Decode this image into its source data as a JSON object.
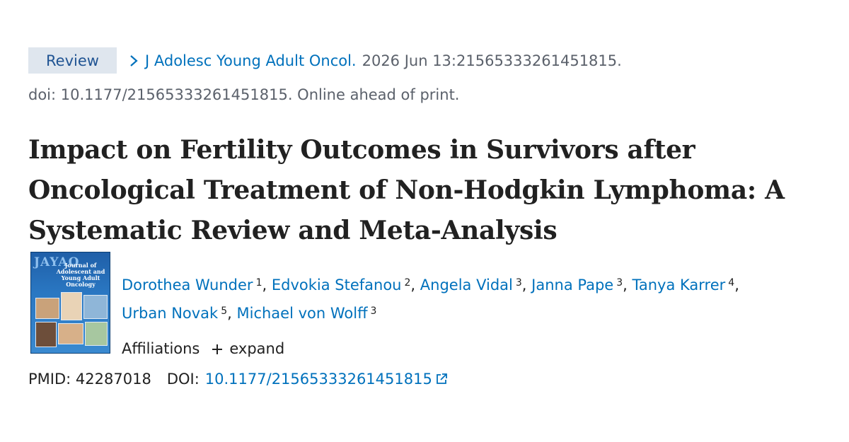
{
  "citation": {
    "badge": "Review",
    "journal": "J Adolesc Young Adult Oncol.",
    "date_pages": "2026 Jun 13:21565333261451815.",
    "doi_line": "doi: 10.1177/21565333261451815. Online ahead of print."
  },
  "article": {
    "title": "Impact on Fertility Outcomes in Survivors after Oncological Treatment of Non-Hodgkin Lymphoma: A Systematic Review and Meta-Analysis"
  },
  "cover": {
    "logo_text": "JAYAO",
    "journal_name": "Journal of Adolescent and Young Adult Oncology"
  },
  "authors": [
    {
      "name": "Dorothea Wunder",
      "aff": "1"
    },
    {
      "name": "Edvokia Stefanou",
      "aff": "2"
    },
    {
      "name": "Angela Vidal",
      "aff": "3"
    },
    {
      "name": "Janna Pape",
      "aff": "3"
    },
    {
      "name": "Tanya Karrer",
      "aff": "4"
    },
    {
      "name": "Urban Novak",
      "aff": "5"
    },
    {
      "name": "Michael von Wolff",
      "aff": "3"
    }
  ],
  "affiliations": {
    "label": "Affiliations",
    "expand_label": "expand"
  },
  "identifiers": {
    "pmid_label": "PMID:",
    "pmid": "42287018",
    "doi_label": "DOI:",
    "doi": "10.1177/21565333261451815"
  },
  "colors": {
    "link": "#0071bc",
    "badge_bg": "#dfe6ee",
    "muted": "#5b616b"
  },
  "icons": {
    "breadcrumb": "chevron-right-icon",
    "expand": "plus-icon",
    "external": "external-link-icon"
  }
}
